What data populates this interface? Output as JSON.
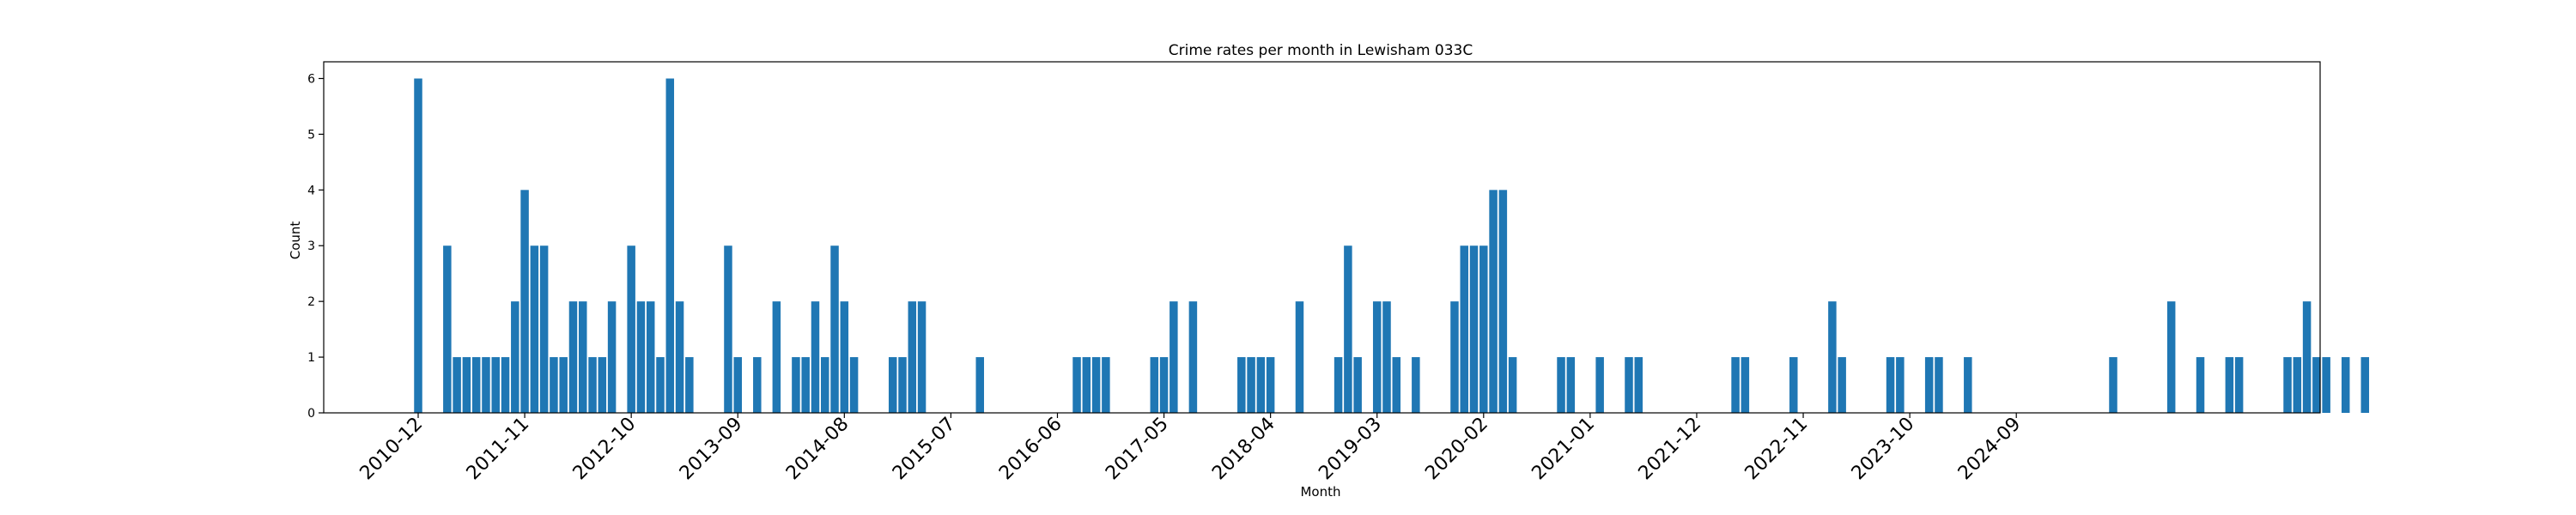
{
  "chart_data": {
    "type": "bar",
    "title": "Crime rates per month in Lewisham 033C",
    "xlabel": "Month",
    "ylabel": "Count",
    "ylim": [
      0,
      6.3
    ],
    "yticks": [
      0,
      1,
      2,
      3,
      4,
      5,
      6
    ],
    "xtick_labels": [
      "2010-12",
      "2011-11",
      "2012-10",
      "2013-09",
      "2014-08",
      "2015-07",
      "2016-06",
      "2017-05",
      "2018-04",
      "2019-03",
      "2020-02",
      "2021-01",
      "2021-12",
      "2022-11",
      "2023-10",
      "2024-09"
    ],
    "bar_color": "#1f77b4",
    "grid": false,
    "values": [
      6,
      0,
      0,
      3,
      1,
      1,
      1,
      1,
      1,
      1,
      2,
      4,
      3,
      3,
      1,
      1,
      2,
      2,
      1,
      1,
      2,
      0,
      3,
      2,
      2,
      1,
      6,
      2,
      1,
      0,
      0,
      0,
      3,
      1,
      0,
      1,
      0,
      2,
      0,
      1,
      1,
      2,
      1,
      3,
      2,
      1,
      0,
      0,
      0,
      1,
      1,
      2,
      2,
      0,
      0,
      0,
      0,
      0,
      1,
      0,
      0,
      0,
      0,
      0,
      0,
      0,
      0,
      0,
      1,
      1,
      1,
      1,
      0,
      0,
      0,
      0,
      1,
      1,
      2,
      0,
      2,
      0,
      0,
      0,
      0,
      1,
      1,
      1,
      1,
      0,
      0,
      2,
      0,
      0,
      0,
      1,
      3,
      1,
      0,
      2,
      2,
      1,
      0,
      1,
      0,
      0,
      0,
      2,
      3,
      3,
      3,
      4,
      4,
      1,
      0,
      0,
      0,
      0,
      1,
      1,
      0,
      0,
      1,
      0,
      0,
      1,
      1,
      0,
      0,
      0,
      0,
      0,
      0,
      0,
      0,
      0,
      1,
      1,
      0,
      0,
      0,
      0,
      1,
      0,
      0,
      0,
      2,
      1,
      0,
      0,
      0,
      0,
      1,
      1,
      0,
      0,
      1,
      1,
      0,
      0,
      1,
      0,
      0,
      0,
      0,
      0,
      0,
      0,
      0,
      0,
      0,
      0,
      0,
      0,
      0,
      1,
      0,
      0,
      0,
      0,
      0,
      2,
      0,
      0,
      1,
      0,
      0,
      1,
      1,
      0,
      0,
      0,
      0,
      1,
      1,
      2,
      1,
      1,
      0,
      1,
      0,
      1
    ]
  }
}
